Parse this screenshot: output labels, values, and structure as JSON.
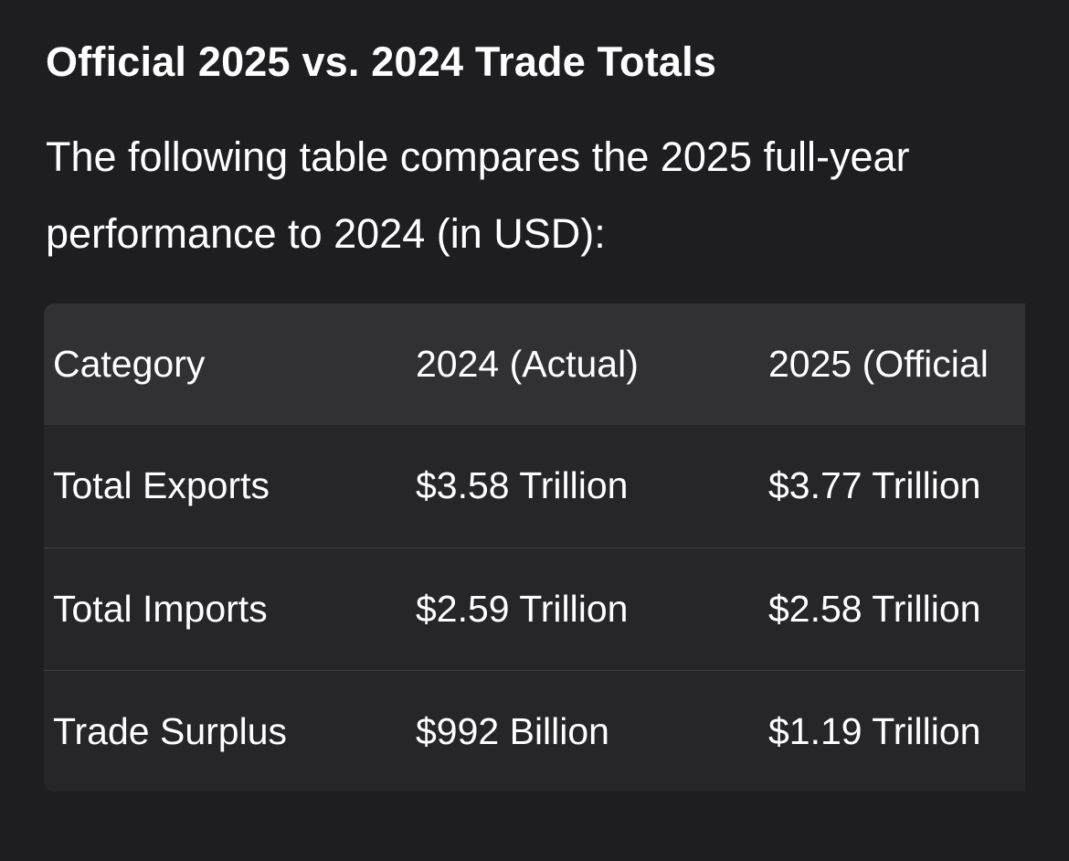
{
  "heading": "Official 2025 vs. 2024 Trade Totals",
  "intro": "The following table compares the 2025 full-year performance to 2024 (in USD):",
  "table": {
    "columns": [
      "Category",
      "2024 (Actual)",
      "2025 (Official"
    ],
    "rows": [
      [
        "Total Exports",
        "$3.58 Trillion",
        "$3.77 Trillion"
      ],
      [
        "Total Imports",
        "$2.59 Trillion",
        "$2.58 Trillion"
      ],
      [
        "Trade Surplus",
        "$992 Billion",
        "$1.19 Trillion"
      ]
    ]
  }
}
